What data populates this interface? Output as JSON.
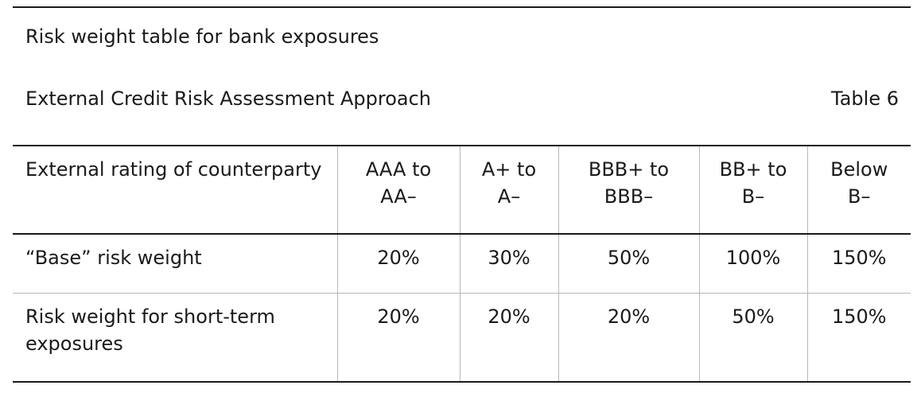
{
  "document": {
    "title": "Risk weight table for bank exposures",
    "approach": "External Credit Risk Assessment Approach",
    "table_number": "Table 6"
  },
  "table": {
    "header": {
      "row_label": "External rating of counterparty",
      "columns": [
        {
          "line1": "AAA to",
          "line2": "AA–"
        },
        {
          "line1": "A+ to",
          "line2": "A–"
        },
        {
          "line1": "BBB+ to",
          "line2": "BBB–"
        },
        {
          "line1": "BB+ to",
          "line2": "B–"
        },
        {
          "line1": "Below",
          "line2": "B–"
        }
      ]
    },
    "rows": [
      {
        "label": "“Base” risk weight",
        "values": [
          "20%",
          "30%",
          "50%",
          "100%",
          "150%"
        ]
      },
      {
        "label": "Risk weight for short-term exposures",
        "values": [
          "20%",
          "20%",
          "20%",
          "50%",
          "150%"
        ]
      }
    ]
  }
}
